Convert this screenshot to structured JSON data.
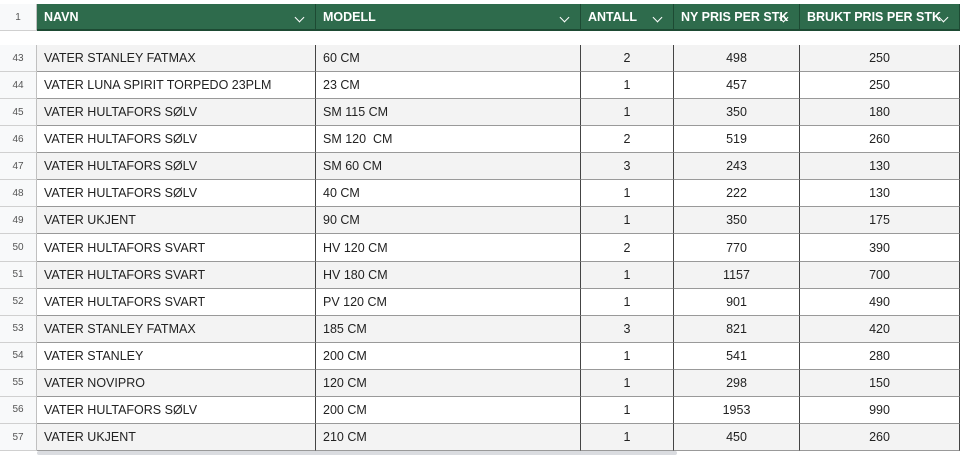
{
  "sheet": {
    "header": {
      "row_number": "1",
      "columns": [
        "NAVN",
        "MODELL",
        "ANTALL",
        "NY PRIS PER STK",
        "BRUKT PRIS PER STK"
      ]
    },
    "rows": [
      [
        "43",
        "VATER STANLEY FATMAX",
        "60 CM",
        "2",
        "498",
        "250"
      ],
      [
        "44",
        "VATER LUNA SPIRIT TORPEDO 23PLM",
        "23 CM",
        "1",
        "457",
        "250"
      ],
      [
        "45",
        "VATER HULTAFORS SØLV",
        "SM 115 CM",
        "1",
        "350",
        "180"
      ],
      [
        "46",
        "VATER HULTAFORS SØLV",
        "SM 120  CM",
        "2",
        "519",
        "260"
      ],
      [
        "47",
        "VATER HULTAFORS SØLV",
        "SM 60 CM",
        "3",
        "243",
        "130"
      ],
      [
        "48",
        "VATER HULTAFORS SØLV",
        "40 CM",
        "1",
        "222",
        "130"
      ],
      [
        "49",
        "VATER UKJENT",
        "90 CM",
        "1",
        "350",
        "175"
      ],
      [
        "50",
        "VATER HULTAFORS SVART",
        "HV 120 CM",
        "2",
        "770",
        "390"
      ],
      [
        "51",
        "VATER HULTAFORS SVART",
        "HV 180 CM",
        "1",
        "1157",
        "700"
      ],
      [
        "52",
        "VATER HULTAFORS SVART",
        "PV 120 CM",
        "1",
        "901",
        "490"
      ],
      [
        "53",
        "VATER STANLEY FATMAX",
        "185 CM",
        "3",
        "821",
        "420"
      ],
      [
        "54",
        "VATER STANLEY",
        "200 CM",
        "1",
        "541",
        "280"
      ],
      [
        "55",
        "VATER NOVIPRO",
        "120 CM",
        "1",
        "298",
        "150"
      ],
      [
        "56",
        "VATER HULTAFORS SØLV",
        "200 CM",
        "1",
        "1953",
        "990"
      ],
      [
        "57",
        "VATER UKJENT",
        "210 CM",
        "1",
        "450",
        "260"
      ]
    ]
  }
}
